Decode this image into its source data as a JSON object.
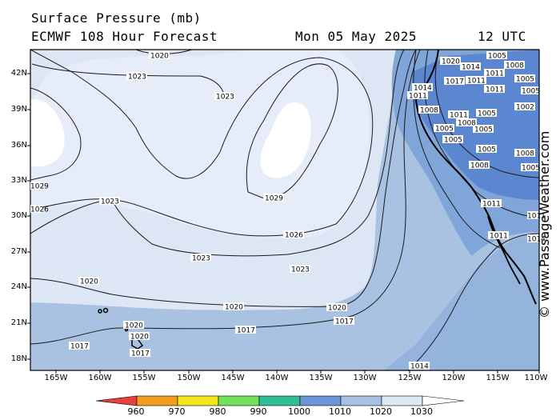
{
  "header": {
    "title": "Surface Pressure (mb)",
    "model": "ECMWF 108 Hour Forecast",
    "date": "Mon 05 May 2025",
    "time": "12 UTC"
  },
  "map": {
    "lat_labels": [
      "42N",
      "39N",
      "36N",
      "33N",
      "30N",
      "27N",
      "24N",
      "21N",
      "18N"
    ],
    "lon_labels": [
      "165W",
      "160W",
      "155W",
      "150W",
      "145W",
      "140W",
      "135W",
      "130W",
      "125W",
      "120W",
      "115W",
      "110W"
    ],
    "isobar_labels": {
      "l1020a": "1020",
      "l1023a": "1023",
      "l1023b": "1023",
      "l1029": "1029",
      "l1026a": "1026",
      "l1023c": "1023",
      "l1023d": "1023",
      "l1020b": "1020",
      "l1020c": "1020",
      "l1020d": "1020",
      "l1017a": "1017",
      "l1017b": "1017",
      "l1017c": "1017",
      "l1014": "1014",
      "l1029w": "1029",
      "l1026w": "1026",
      "l1023e": "1023",
      "l1020e": "1020",
      "l1020f": "1020",
      "l1020g": "1020",
      "l1017d": "1017",
      "l1014b": "1014",
      "l1011a": "1011",
      "l1011b": "1011",
      "l1008a": "1008",
      "l1005a": "1005",
      "l1005b": "1005",
      "l1002": "1002",
      "l1011c": "1011",
      "l1011d": "1011",
      "l1008b": "1008",
      "l1008c": "1008",
      "l1005c": "1005",
      "l1005d": "1005",
      "l1005e": "1005",
      "l1005f": "1005",
      "l1005g": "1005",
      "l1008d": "1008",
      "l1008e": "1008",
      "l1011e": "1011",
      "l1011f": "1011",
      "l1014c": "1014",
      "l1017e": "1017",
      "l1011g": "1011",
      "l1011h": "1011",
      "l1014d": "1014",
      "l1005h": "1005",
      "l1005i": "1005"
    },
    "watermark": "© www.PassageWeather.com"
  },
  "colorbar": {
    "labels": [
      "960",
      "970",
      "980",
      "990",
      "1000",
      "1010",
      "1020",
      "1030"
    ],
    "colors": [
      "#e8413c",
      "#f39c1e",
      "#f5e61c",
      "#72e05c",
      "#2fbf93",
      "#6a95d6",
      "#a7c1e3",
      "#dfe8f6"
    ]
  },
  "colors": {
    "p1029_plus": "#ffffff",
    "p1026_1029": "#e6edf8",
    "p1020_1026": "#dce6f5",
    "p1017_1020": "#a9c2e2",
    "p1014_1017": "#94b4de",
    "p1008_1014": "#7fa5d9",
    "p_low": "#5a87cf",
    "land": "#5b86cf"
  }
}
